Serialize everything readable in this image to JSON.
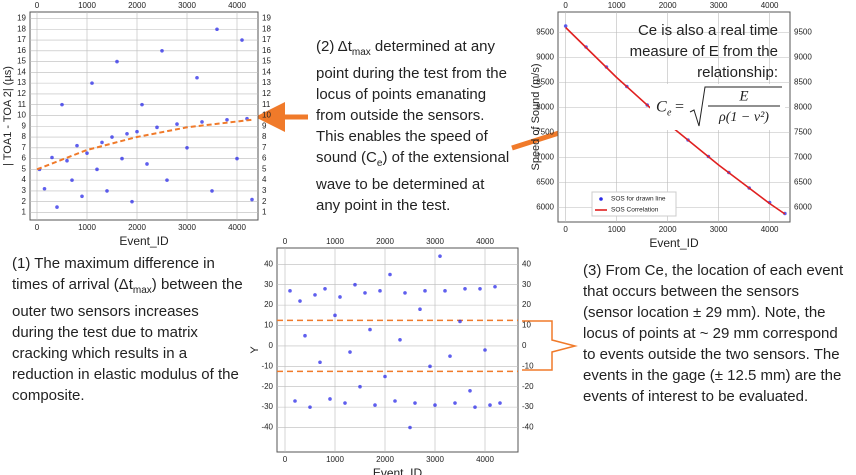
{
  "chart_data": [
    {
      "type": "scatter",
      "x_label": "Event_ID",
      "y_label": "| TOA1 - TOA 2| (µs)",
      "xlim": [
        -140,
        4420
      ],
      "ylim": [
        0.3,
        19.6
      ],
      "xticks": [
        0,
        1000,
        2000,
        3000,
        4000
      ],
      "yticks": [
        1,
        2,
        3,
        4,
        5,
        6,
        7,
        8,
        9,
        10,
        11,
        12,
        13,
        14,
        15,
        16,
        17,
        18,
        19
      ],
      "grid": true,
      "series": [
        {
          "color": "#2a2ae8",
          "mode": "markers",
          "x": [
            50,
            150,
            300,
            400,
            500,
            600,
            700,
            800,
            900,
            1000,
            1100,
            1200,
            1300,
            1400,
            1500,
            1600,
            1700,
            1800,
            1900,
            2000,
            2100,
            2200,
            2400,
            2500,
            2600,
            2800,
            3000,
            3200,
            3300,
            3500,
            3600,
            3800,
            4000,
            4100,
            4200,
            4300
          ],
          "values": [
            5,
            3.2,
            6.1,
            1.5,
            11,
            5.8,
            4,
            7.2,
            2.5,
            6.5,
            13,
            5,
            7.5,
            3,
            8,
            15,
            6,
            8.3,
            2,
            8.5,
            11,
            5.5,
            8.9,
            16,
            4,
            9.2,
            7,
            13.5,
            9.4,
            3,
            18,
            9.6,
            6,
            17,
            9.7,
            2.2
          ]
        },
        {
          "color": "#f07a2a",
          "mode": "dashed-line",
          "x": [
            0,
            1000,
            2000,
            3000,
            4300
          ],
          "values": [
            5,
            6.8,
            8,
            8.9,
            9.6
          ]
        }
      ]
    },
    {
      "type": "scatter",
      "x_label": "Event_ID",
      "y_label": "Speed of Sound (m/s)",
      "xlim": [
        -150,
        4400
      ],
      "ylim": [
        5710,
        9910
      ],
      "xticks": [
        0,
        1000,
        2000,
        3000,
        4000
      ],
      "yticks": [
        6000,
        6500,
        7000,
        7500,
        8000,
        8500,
        9000,
        9500
      ],
      "grid": true,
      "legend": "lower left",
      "series": [
        {
          "name": "SOS for drawn line",
          "color": "#2a2ae8",
          "mode": "markers",
          "x": [
            0,
            400,
            800,
            1200,
            1600,
            2000,
            2400,
            2800,
            3200,
            3600,
            4000,
            4300
          ],
          "values": [
            9630,
            9210,
            8810,
            8420,
            8050,
            7700,
            7350,
            7020,
            6700,
            6390,
            6100,
            5880
          ]
        },
        {
          "name": "SOS Correlation",
          "color": "#e02020",
          "mode": "line",
          "x": [
            0,
            1000,
            2000,
            3000,
            4000,
            4300
          ],
          "values": [
            9600,
            8600,
            7680,
            6850,
            6080,
            5870
          ]
        }
      ],
      "note": "Ce is also a real time measure of E from the relationship:",
      "formula": {
        "lhs": "C",
        "lhs_sub": "e",
        "numerator": "E",
        "denominator": "ρ(1 − ν²)"
      }
    },
    {
      "type": "scatter",
      "x_label": "Event_ID",
      "y_label": "Y",
      "xlim": [
        -160,
        4660
      ],
      "ylim": [
        -52,
        48
      ],
      "xticks": [
        0,
        1000,
        2000,
        3000,
        4000
      ],
      "yticks": [
        -40,
        -30,
        -20,
        -10,
        0,
        10,
        20,
        30,
        40
      ],
      "grid": true,
      "hlines": [
        12.5,
        -12.5
      ],
      "hline_color": "#f07a2a",
      "series": [
        {
          "color": "#2a2ae8",
          "mode": "markers",
          "x": [
            100,
            200,
            300,
            400,
            500,
            600,
            700,
            800,
            900,
            1000,
            1100,
            1200,
            1300,
            1400,
            1500,
            1600,
            1700,
            1800,
            1900,
            2000,
            2100,
            2200,
            2300,
            2400,
            2500,
            2600,
            2700,
            2800,
            2900,
            3000,
            3100,
            3200,
            3300,
            3400,
            3500,
            3600,
            3700,
            3800,
            3900,
            4000,
            4100,
            4200,
            4300
          ],
          "values": [
            27,
            -27,
            22,
            5,
            -30,
            25,
            -8,
            28,
            -26,
            15,
            24,
            -28,
            -3,
            30,
            -20,
            26,
            8,
            -29,
            27,
            -15,
            35,
            -27,
            3,
            26,
            -40,
            -28,
            18,
            27,
            -10,
            -29,
            44,
            27,
            -5,
            -28,
            12,
            28,
            -22,
            -30,
            28,
            -2,
            -29,
            29,
            -28
          ]
        }
      ]
    }
  ],
  "annotations": [
    {
      "runs": [
        "(1) The maximum difference in times of arrival (Δt",
        "max",
        ") between the outer two sensors increases during the test due to matrix cracking which results in a reduction in elastic modulus of the composite."
      ]
    },
    {
      "runs": [
        "(2) Δt",
        "max",
        " determined at any point during the test from the locus of points emanating from outside the sensors. This enables the speed of sound (C",
        "e",
        ") of the extensional wave to be determined at any point in the test."
      ]
    },
    {
      "runs": [
        "(3) From Ce, the location of each event that occurs between the sensors (sensor location ± 29 mm). Note, the locus of points at ~ 29 mm correspond to events outside the two sensors. The events in the gage (± 12.5 mm) are the events of interest to be evaluated."
      ]
    }
  ]
}
